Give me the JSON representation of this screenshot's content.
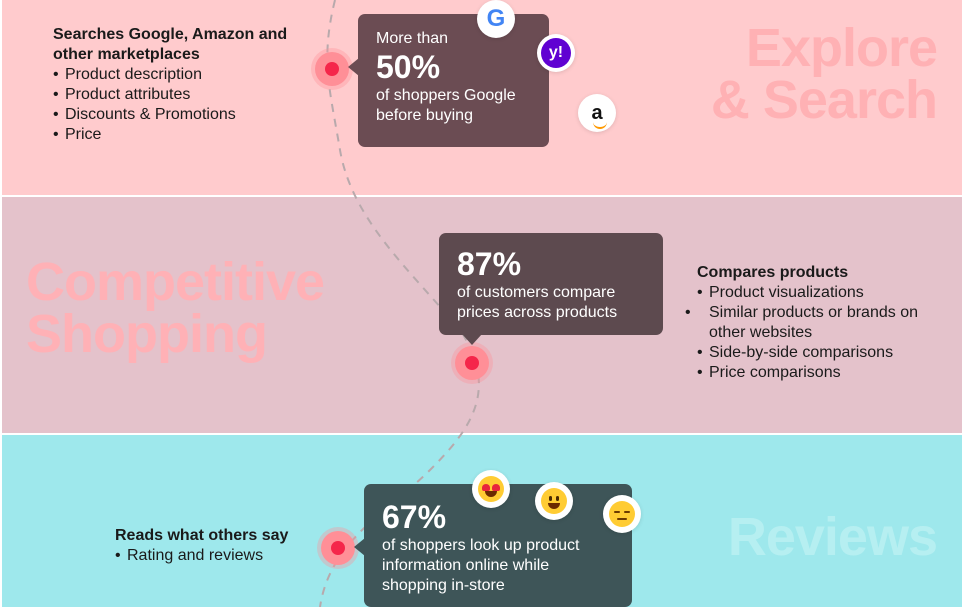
{
  "stages": {
    "explore": {
      "title": "Explore\n& Search",
      "stat_lead": "More than",
      "stat_value": "50%",
      "stat_text": "of shoppers Google before buying",
      "info_heading": "Searches Google, Amazon and other marketplaces",
      "info_items": [
        "Product description",
        "Product attributes",
        "Discounts & Promotions",
        "Price"
      ],
      "icons": [
        "google-logo",
        "yahoo-logo",
        "amazon-logo"
      ],
      "icon_glyphs": {
        "google": "G",
        "yahoo": "y!",
        "amazon": "a"
      }
    },
    "compare": {
      "title": "Competitive\nShopping",
      "stat_value": "87%",
      "stat_text": "of customers compare prices across products",
      "info_heading": "Compares products",
      "info_items": [
        "Product visualizations",
        "Similar products or brands on other websites",
        "Side-by-side comparisons",
        "Price comparisons"
      ]
    },
    "reviews": {
      "title": "Reviews",
      "stat_value": "67%",
      "stat_text": "of shoppers look up product information online while shopping in-store",
      "info_heading": "Reads what others say",
      "info_items": [
        "Rating and reviews"
      ],
      "icons": [
        "heart-eyes-emoji",
        "grinning-emoji",
        "sad-emoji"
      ]
    }
  },
  "colors": {
    "explore_band": "#ffcbcd",
    "compare_band": "#e4c2cb",
    "reviews_band": "#9ee8ec",
    "marker": "#f5264a"
  }
}
